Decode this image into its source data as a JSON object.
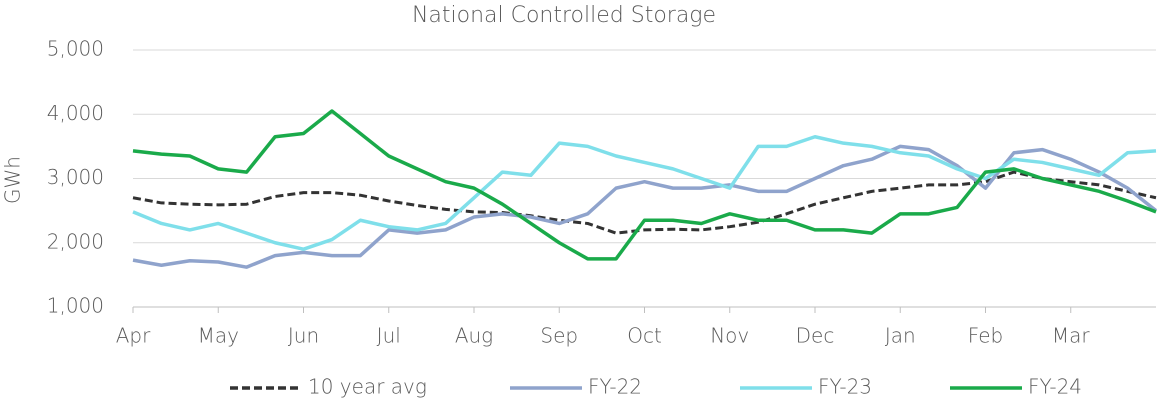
{
  "chart_data": {
    "type": "line",
    "title": "National Controlled Storage",
    "y_label": "GWh",
    "categories": [
      "Apr",
      null,
      null,
      "May",
      null,
      null,
      "Jun",
      null,
      null,
      "Jul",
      null,
      null,
      "Aug",
      null,
      null,
      "Sep",
      null,
      null,
      "Oct",
      null,
      null,
      "Nov",
      null,
      null,
      "Dec",
      null,
      null,
      "Jan",
      null,
      null,
      "Feb",
      null,
      null,
      "Mar",
      null,
      null,
      null
    ],
    "ylim": [
      1000,
      5000
    ],
    "yticks": [
      {
        "value": 1000,
        "label": "1,000"
      },
      {
        "value": 2000,
        "label": "2,000"
      },
      {
        "value": 3000,
        "label": "3,000"
      },
      {
        "value": 4000,
        "label": "4,000"
      },
      {
        "value": 5000,
        "label": "5,000"
      }
    ],
    "grid": true,
    "legend": "bottom",
    "series": [
      {
        "name": "10 year avg",
        "color": "#333333",
        "dashed": true,
        "values": [
          2700,
          2620,
          2600,
          2590,
          2600,
          2720,
          2780,
          2780,
          2740,
          2650,
          2580,
          2520,
          2480,
          2470,
          2420,
          2350,
          2300,
          2150,
          2200,
          2210,
          2200,
          2250,
          2320,
          2450,
          2600,
          2700,
          2800,
          2850,
          2900,
          2900,
          2950,
          3100,
          3000,
          2950,
          2900,
          2800,
          2700
        ]
      },
      {
        "name": "FY-22",
        "color": "#8fa3cc",
        "values": [
          1730,
          1650,
          1720,
          1700,
          1620,
          1800,
          1850,
          1800,
          1800,
          2200,
          2150,
          2200,
          2400,
          2450,
          2400,
          2300,
          2450,
          2850,
          2950,
          2850,
          2850,
          2900,
          2800,
          2800,
          3000,
          3200,
          3300,
          3500,
          3450,
          3200,
          2850,
          3400,
          3450,
          3300,
          3100,
          2850,
          2500
        ]
      },
      {
        "name": "FY-23",
        "color": "#7fdfea",
        "values": [
          2480,
          2300,
          2200,
          2300,
          2150,
          2000,
          1900,
          2050,
          2350,
          2250,
          2200,
          2300,
          2700,
          3100,
          3050,
          3550,
          3500,
          3350,
          3250,
          3150,
          3000,
          2850,
          3500,
          3500,
          3650,
          3550,
          3500,
          3400,
          3350,
          3150,
          3000,
          3300,
          3250,
          3150,
          3050,
          3400,
          3430
        ]
      },
      {
        "name": "FY-24",
        "color": "#1aaa4a",
        "values": [
          3430,
          3380,
          3350,
          3150,
          3100,
          3650,
          3700,
          4050,
          3700,
          3350,
          3150,
          2950,
          2850,
          2600,
          2300,
          2000,
          1750,
          1750,
          2350,
          2350,
          2300,
          2450,
          2350,
          2350,
          2200,
          2200,
          2150,
          2450,
          2450,
          2550,
          3100,
          3150,
          3000,
          2900,
          2800,
          2650,
          2480
        ]
      }
    ]
  }
}
